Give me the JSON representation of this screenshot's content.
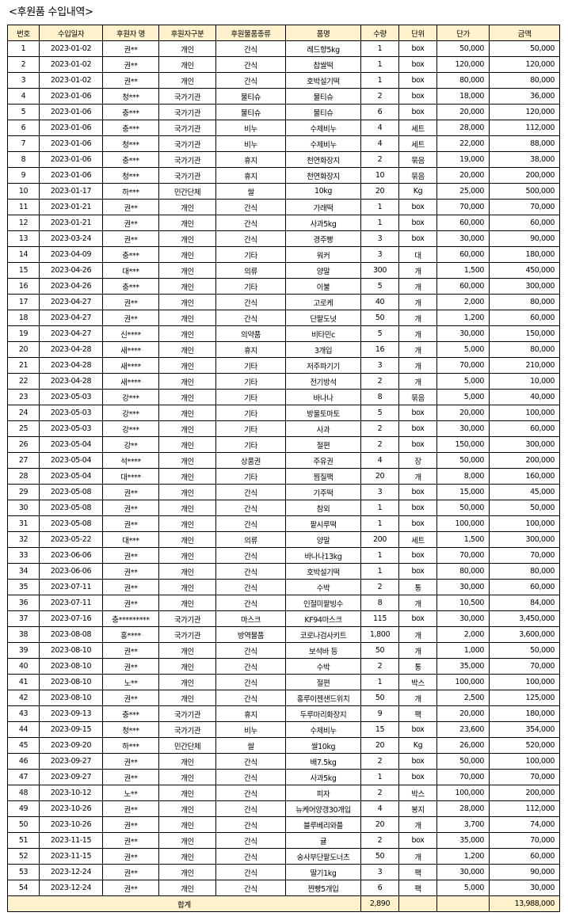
{
  "title": "<후원품 수입내역>",
  "header_bg": "#fff2cc",
  "columns": [
    "번호",
    "수입일자",
    "후원자 명",
    "후원자구분",
    "후원물품종류",
    "품명",
    "수량",
    "단위",
    "단가",
    "금액"
  ],
  "rows": [
    [
      "1",
      "2023-01-02",
      "권**",
      "개인",
      "간식",
      "레드향5kg",
      "1",
      "box",
      "50,000",
      "50,000"
    ],
    [
      "2",
      "2023-01-02",
      "권**",
      "개인",
      "간식",
      "찹쌀떡",
      "1",
      "box",
      "120,000",
      "120,000"
    ],
    [
      "3",
      "2023-01-02",
      "권**",
      "개인",
      "간식",
      "호박설기떡",
      "1",
      "box",
      "80,000",
      "80,000"
    ],
    [
      "4",
      "2023-01-06",
      "청***",
      "국가기관",
      "물티슈",
      "물티슈",
      "2",
      "box",
      "18,000",
      "36,000"
    ],
    [
      "5",
      "2023-01-06",
      "충***",
      "국가기관",
      "물티슈",
      "물티슈",
      "6",
      "box",
      "20,000",
      "120,000"
    ],
    [
      "6",
      "2023-01-06",
      "충***",
      "국가기관",
      "비누",
      "수제비누",
      "4",
      "세트",
      "28,000",
      "112,000"
    ],
    [
      "7",
      "2023-01-06",
      "청***",
      "국가기관",
      "비누",
      "수제비누",
      "4",
      "세트",
      "22,000",
      "88,000"
    ],
    [
      "8",
      "2023-01-06",
      "충***",
      "국가기관",
      "휴지",
      "천연화장지",
      "2",
      "묶음",
      "19,000",
      "38,000"
    ],
    [
      "9",
      "2023-01-06",
      "청***",
      "국가기관",
      "휴지",
      "천연화장지",
      "10",
      "묶음",
      "20,000",
      "200,000"
    ],
    [
      "10",
      "2023-01-17",
      "하***",
      "민간단체",
      "쌀",
      "10kg",
      "20",
      "Kg",
      "25,000",
      "500,000"
    ],
    [
      "11",
      "2023-01-21",
      "권**",
      "개인",
      "간식",
      "가래떡",
      "1",
      "box",
      "70,000",
      "70,000"
    ],
    [
      "12",
      "2023-01-21",
      "권**",
      "개인",
      "간식",
      "사과5kg",
      "1",
      "box",
      "60,000",
      "60,000"
    ],
    [
      "13",
      "2023-03-24",
      "권**",
      "개인",
      "간식",
      "경주빵",
      "3",
      "box",
      "30,000",
      "90,000"
    ],
    [
      "14",
      "2023-04-09",
      "충***",
      "개인",
      "기타",
      "워커",
      "3",
      "대",
      "60,000",
      "180,000"
    ],
    [
      "15",
      "2023-04-26",
      "대***",
      "개인",
      "의류",
      "양말",
      "300",
      "개",
      "1,500",
      "450,000"
    ],
    [
      "16",
      "2023-04-26",
      "충***",
      "개인",
      "기타",
      "이불",
      "5",
      "개",
      "60,000",
      "300,000"
    ],
    [
      "17",
      "2023-04-27",
      "권**",
      "개인",
      "간식",
      "고로케",
      "40",
      "개",
      "2,000",
      "80,000"
    ],
    [
      "18",
      "2023-04-27",
      "권**",
      "개인",
      "간식",
      "단팥도넛",
      "50",
      "개",
      "1,200",
      "60,000"
    ],
    [
      "19",
      "2023-04-27",
      "신****",
      "개인",
      "의약품",
      "비타민c",
      "5",
      "개",
      "30,000",
      "150,000"
    ],
    [
      "20",
      "2023-04-28",
      "새****",
      "개인",
      "휴지",
      "3개입",
      "16",
      "개",
      "5,000",
      "80,000"
    ],
    [
      "21",
      "2023-04-28",
      "새****",
      "개인",
      "기타",
      "저주파기기",
      "3",
      "개",
      "70,000",
      "210,000"
    ],
    [
      "22",
      "2023-04-28",
      "새****",
      "개인",
      "기타",
      "전기방석",
      "2",
      "개",
      "5,000",
      "10,000"
    ],
    [
      "23",
      "2023-05-03",
      "강***",
      "개인",
      "기타",
      "바나나",
      "8",
      "묶음",
      "5,000",
      "40,000"
    ],
    [
      "24",
      "2023-05-03",
      "강***",
      "개인",
      "기타",
      "방울토마토",
      "5",
      "box",
      "20,000",
      "100,000"
    ],
    [
      "25",
      "2023-05-03",
      "강***",
      "개인",
      "기타",
      "사과",
      "2",
      "box",
      "30,000",
      "60,000"
    ],
    [
      "26",
      "2023-05-04",
      "강**",
      "개인",
      "기타",
      "절편",
      "2",
      "box",
      "150,000",
      "300,000"
    ],
    [
      "27",
      "2023-05-04",
      "석****",
      "개인",
      "상품권",
      "주유권",
      "4",
      "장",
      "50,000",
      "200,000"
    ],
    [
      "28",
      "2023-05-04",
      "대****",
      "개인",
      "기타",
      "찜질팩",
      "20",
      "개",
      "8,000",
      "160,000"
    ],
    [
      "29",
      "2023-05-08",
      "권**",
      "개인",
      "간식",
      "기주떡",
      "3",
      "box",
      "15,000",
      "45,000"
    ],
    [
      "30",
      "2023-05-08",
      "권**",
      "개인",
      "간식",
      "참외",
      "1",
      "box",
      "50,000",
      "50,000"
    ],
    [
      "31",
      "2023-05-08",
      "권**",
      "개인",
      "간식",
      "팥시루떡",
      "1",
      "box",
      "100,000",
      "100,000"
    ],
    [
      "32",
      "2023-05-22",
      "대***",
      "개인",
      "의류",
      "양말",
      "200",
      "세트",
      "1,500",
      "300,000"
    ],
    [
      "33",
      "2023-06-06",
      "권**",
      "개인",
      "간식",
      "바나나13kg",
      "1",
      "box",
      "70,000",
      "70,000"
    ],
    [
      "34",
      "2023-06-06",
      "권**",
      "개인",
      "간식",
      "호박설기떡",
      "1",
      "box",
      "80,000",
      "80,000"
    ],
    [
      "35",
      "2023-07-11",
      "권**",
      "개인",
      "간식",
      "수박",
      "2",
      "통",
      "30,000",
      "60,000"
    ],
    [
      "36",
      "2023-07-11",
      "권**",
      "개인",
      "간식",
      "인절미팥빙수",
      "8",
      "개",
      "10,500",
      "84,000"
    ],
    [
      "37",
      "2023-07-16",
      "충*********",
      "국가기관",
      "마스크",
      "KF94마스크",
      "115",
      "box",
      "30,000",
      "3,450,000"
    ],
    [
      "38",
      "2023-08-08",
      "홍****",
      "국가기관",
      "방역물품",
      "코로나검사키트",
      "1,800",
      "개",
      "2,000",
      "3,600,000"
    ],
    [
      "39",
      "2023-08-10",
      "권**",
      "개인",
      "간식",
      "보석바 등",
      "50",
      "개",
      "1,000",
      "50,000"
    ],
    [
      "40",
      "2023-08-10",
      "권**",
      "개인",
      "간식",
      "수박",
      "2",
      "통",
      "35,000",
      "70,000"
    ],
    [
      "41",
      "2023-08-10",
      "노**",
      "개인",
      "간식",
      "절편",
      "1",
      "박스",
      "100,000",
      "100,000"
    ],
    [
      "42",
      "2023-08-10",
      "권**",
      "개인",
      "간식",
      "홍루이젠샌드위치",
      "50",
      "개",
      "2,500",
      "125,000"
    ],
    [
      "43",
      "2023-09-13",
      "충***",
      "국가기관",
      "휴지",
      "두루마리화장지",
      "9",
      "팩",
      "20,000",
      "180,000"
    ],
    [
      "44",
      "2023-09-15",
      "청***",
      "국가기관",
      "비누",
      "수제비누",
      "15",
      "box",
      "23,600",
      "354,000"
    ],
    [
      "45",
      "2023-09-20",
      "하***",
      "민간단체",
      "쌀",
      "쌀10kg",
      "20",
      "Kg",
      "26,000",
      "520,000"
    ],
    [
      "46",
      "2023-09-27",
      "권**",
      "개인",
      "간식",
      "배7.5kg",
      "2",
      "box",
      "50,000",
      "100,000"
    ],
    [
      "47",
      "2023-09-27",
      "권**",
      "개인",
      "간식",
      "사과5kg",
      "1",
      "box",
      "70,000",
      "70,000"
    ],
    [
      "48",
      "2023-10-12",
      "노**",
      "개인",
      "간식",
      "피자",
      "2",
      "박스",
      "100,000",
      "200,000"
    ],
    [
      "49",
      "2023-10-26",
      "권**",
      "개인",
      "간식",
      "뉴케어양갱30개입",
      "4",
      "봉지",
      "28,000",
      "112,000"
    ],
    [
      "50",
      "2023-10-26",
      "권**",
      "개인",
      "간식",
      "블루베리와플",
      "20",
      "개",
      "3,700",
      "74,000"
    ],
    [
      "51",
      "2023-11-15",
      "권**",
      "개인",
      "간식",
      "귤",
      "2",
      "box",
      "35,000",
      "70,000"
    ],
    [
      "52",
      "2023-11-15",
      "권**",
      "개인",
      "간식",
      "숭사부단팥도너츠",
      "50",
      "개",
      "1,200",
      "60,000"
    ],
    [
      "53",
      "2023-12-24",
      "권**",
      "개인",
      "간식",
      "딸기1kg",
      "3",
      "팩",
      "30,000",
      "90,000"
    ],
    [
      "54",
      "2023-12-24",
      "권**",
      "개인",
      "간식",
      "찐빵5개입",
      "6",
      "팩",
      "5,000",
      "30,000"
    ]
  ],
  "total": {
    "label": "합계",
    "quantity": "2,890",
    "amount": "13,988,000"
  }
}
